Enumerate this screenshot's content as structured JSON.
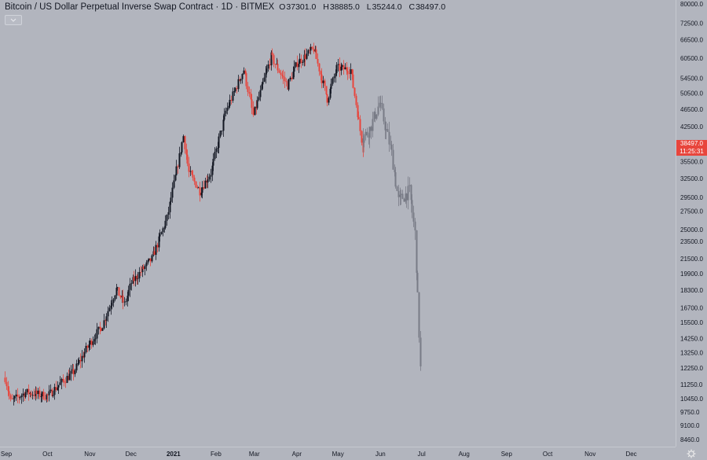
{
  "header": {
    "title": "Bitcoin / US Dollar Perpetual Inverse Swap Contract · 1D · BITMEX",
    "ohlc": [
      {
        "key": "O",
        "value": "37301.0"
      },
      {
        "key": "H",
        "value": "38885.0"
      },
      {
        "key": "L",
        "value": "35244.0"
      },
      {
        "key": "C",
        "value": "38497.0"
      }
    ]
  },
  "last_price": {
    "value": "38497.0",
    "countdown": "11:25:31"
  },
  "colors": {
    "background": "#b2b5be",
    "up": "#131722",
    "down": "#e8453c",
    "projection": "#787b86",
    "text": "#131722"
  },
  "icons": {
    "collapse": "chevron-down-icon",
    "settings": "gear-icon"
  },
  "chart_data": {
    "type": "candlestick",
    "interval": "1D",
    "y_scale": "log",
    "y_ticks": [
      "80000.0",
      "72500.0",
      "66500.0",
      "60500.0",
      "54500.0",
      "50500.0",
      "46500.0",
      "42500.0",
      "35500.0",
      "32500.0",
      "29500.0",
      "27500.0",
      "25000.0",
      "23500.0",
      "21500.0",
      "19900.0",
      "18300.0",
      "16700.0",
      "15500.0",
      "14250.0",
      "13250.0",
      "12250.0",
      "11250.0",
      "10450.0",
      "9750.0",
      "9100.0",
      "8460.0"
    ],
    "x_ticks": [
      "Sep",
      "Oct",
      "Nov",
      "Dec",
      "2021",
      "Feb",
      "Mar",
      "Apr",
      "May",
      "Jun",
      "Jul",
      "Aug",
      "Sep",
      "Oct",
      "Nov",
      "Dec"
    ],
    "x_range": [
      "2020-09-01",
      "2021-12-15"
    ],
    "y_range": [
      8000,
      80000
    ],
    "actual_anchors": [
      [
        "2020-08-31",
        11650
      ],
      [
        "2020-09-04",
        10300
      ],
      [
        "2020-09-15",
        10800
      ],
      [
        "2020-10-01",
        10600
      ],
      [
        "2020-10-10",
        11300
      ],
      [
        "2020-10-20",
        12000
      ],
      [
        "2020-10-31",
        13800
      ],
      [
        "2020-11-10",
        15300
      ],
      [
        "2020-11-20",
        18400
      ],
      [
        "2020-11-26",
        17000
      ],
      [
        "2020-12-01",
        19000
      ],
      [
        "2020-12-16",
        21500
      ],
      [
        "2020-12-27",
        26500
      ],
      [
        "2021-01-08",
        40500
      ],
      [
        "2021-01-12",
        33500
      ],
      [
        "2021-01-20",
        30500
      ],
      [
        "2021-01-28",
        33500
      ],
      [
        "2021-02-08",
        46000
      ],
      [
        "2021-02-21",
        57000
      ],
      [
        "2021-02-28",
        45000
      ],
      [
        "2021-03-13",
        61000
      ],
      [
        "2021-03-25",
        52500
      ],
      [
        "2021-04-01",
        59000
      ],
      [
        "2021-04-13",
        63500
      ],
      [
        "2021-04-23",
        49000
      ],
      [
        "2021-04-30",
        57500
      ],
      [
        "2021-05-10",
        57000
      ],
      [
        "2021-05-13",
        50000
      ],
      [
        "2021-05-19",
        38000
      ]
    ],
    "projection_anchors": [
      [
        "2021-05-19",
        40000
      ],
      [
        "2021-05-24",
        42000
      ],
      [
        "2021-05-31",
        48000
      ],
      [
        "2021-06-09",
        37000
      ],
      [
        "2021-06-14",
        29000
      ],
      [
        "2021-06-22",
        30500
      ],
      [
        "2021-06-26",
        24500
      ],
      [
        "2021-06-28",
        17500
      ],
      [
        "2021-06-30",
        12200
      ]
    ]
  }
}
